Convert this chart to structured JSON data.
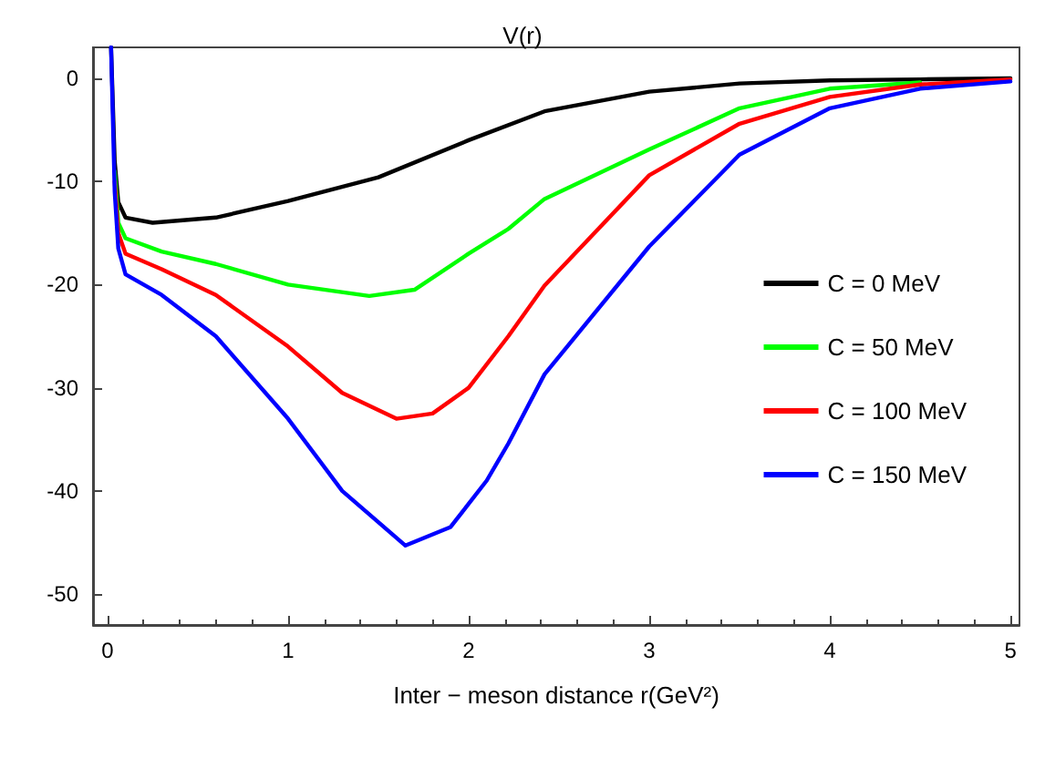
{
  "chart_data": {
    "type": "line",
    "title": "V(r)",
    "xlabel": "Inter − meson distance r(GeV²)",
    "xlim": [
      -0.08,
      5.05
    ],
    "ylim": [
      -53,
      3
    ],
    "xticks": [
      0,
      1,
      2,
      3,
      4,
      5
    ],
    "yticks": [
      -50,
      -40,
      -30,
      -20,
      -10,
      0
    ],
    "grid": false,
    "legend": "right",
    "marker": "none",
    "line_style": "solid",
    "series": [
      {
        "name": "C = 0 MeV",
        "color": "#000000",
        "x": [
          0.02,
          0.04,
          0.06,
          0.1,
          0.25,
          0.6,
          1.0,
          1.5,
          2.0,
          2.42,
          3.0,
          3.5,
          4.0,
          4.5,
          5.0
        ],
        "values": [
          3,
          -8,
          -12,
          -13.5,
          -14,
          -13.5,
          -11.9,
          -9.6,
          -6,
          -3.2,
          -1.3,
          -0.5,
          -0.2,
          -0.1,
          0
        ]
      },
      {
        "name": "C = 50 MeV",
        "color": "#00ff00",
        "x": [
          0.04,
          0.06,
          0.1,
          0.3,
          0.6,
          1.0,
          1.45,
          1.7,
          2.0,
          2.22,
          2.42,
          3.0,
          3.5,
          4.0,
          4.5
        ],
        "values": [
          -9,
          -14,
          -15.5,
          -16.8,
          -18,
          -20,
          -21.1,
          -20.5,
          -17,
          -14.6,
          -11.7,
          -6.9,
          -2.9,
          -1,
          -0.4
        ]
      },
      {
        "name": "C = 100 MeV",
        "color": "#ff0000",
        "x": [
          0.04,
          0.06,
          0.1,
          0.3,
          0.6,
          1.0,
          1.3,
          1.6,
          1.8,
          2.0,
          2.22,
          2.42,
          3.0,
          3.5,
          4.0,
          4.5,
          5.0
        ],
        "values": [
          -10,
          -15,
          -17,
          -18.5,
          -21,
          -26,
          -30.5,
          -33,
          -32.5,
          -30,
          -25,
          -20.1,
          -9.4,
          -4.4,
          -1.8,
          -0.6,
          -0.1
        ]
      },
      {
        "name": "C = 150 MeV",
        "color": "#0000ff",
        "x": [
          0.02,
          0.04,
          0.06,
          0.1,
          0.3,
          0.6,
          1.0,
          1.3,
          1.65,
          1.9,
          2.1,
          2.22,
          2.42,
          3.0,
          3.5,
          4.0,
          4.5,
          5.0
        ],
        "values": [
          3,
          -11,
          -16.5,
          -19,
          -21,
          -25,
          -33,
          -40,
          -45.3,
          -43.5,
          -39,
          -35.4,
          -28.7,
          -16.3,
          -7.4,
          -2.9,
          -1,
          -0.3
        ]
      }
    ]
  }
}
